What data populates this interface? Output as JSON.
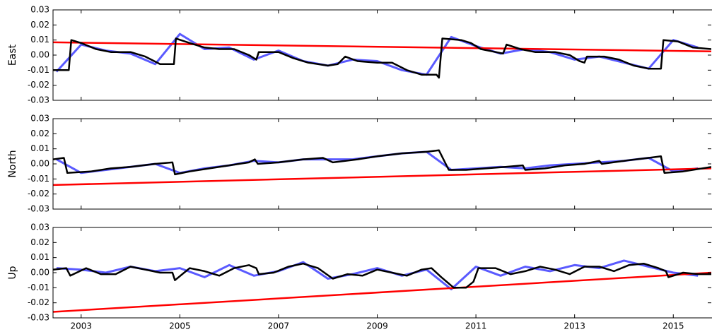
{
  "chart_data": [
    {
      "type": "line",
      "ylabel": "East",
      "xlim": [
        2002.43,
        2015.77
      ],
      "xticks": [
        2003,
        2005,
        2007,
        2009,
        2011,
        2013,
        2015
      ],
      "xtick_labels": false,
      "ylim": [
        -0.03,
        0.03
      ],
      "yticks": [
        -0.03,
        -0.02,
        -0.01,
        {
          "value": 0,
          "label": "0.00"
        },
        0.01,
        0.02,
        0.03
      ],
      "series": [
        {
          "color": "#5a5aff",
          "width": 3,
          "x": [
            2002.5,
            2003,
            2003.5,
            2004,
            2004.5,
            2005,
            2005.5,
            2006,
            2006.5,
            2007,
            2007.5,
            2008,
            2008.5,
            2009,
            2009.5,
            2010,
            2010.5,
            2011,
            2011.5,
            2012,
            2012.5,
            2013,
            2013.5,
            2014,
            2014.5,
            2015,
            2015.5
          ],
          "values": [
            -0.011,
            0.007,
            0.003,
            0.001,
            -0.006,
            0.014,
            0.004,
            0.005,
            -0.003,
            0.003,
            -0.004,
            -0.007,
            -0.003,
            -0.004,
            -0.01,
            -0.013,
            0.012,
            0.006,
            0.001,
            0.004,
            0.002,
            -0.003,
            -0.001,
            -0.005,
            -0.009,
            0.01,
            0.005
          ]
        },
        {
          "color": "#ff0000",
          "width": 2.5,
          "x": [
            2002.43,
            2015.77
          ],
          "values": [
            0.0085,
            0.0025
          ]
        },
        {
          "color": "#000000",
          "width": 2.5,
          "x": [
            2002.43,
            2002.75,
            2002.8,
            2003.0,
            2003.3,
            2003.6,
            2004.0,
            2004.3,
            2004.6,
            2004.88,
            2004.92,
            2005.2,
            2005.5,
            2005.8,
            2006.1,
            2006.4,
            2006.55,
            2006.6,
            2007.0,
            2007.3,
            2007.6,
            2008.0,
            2008.2,
            2008.35,
            2008.6,
            2009.0,
            2009.3,
            2009.6,
            2009.9,
            2010.2,
            2010.25,
            2010.32,
            2010.7,
            2010.9,
            2011.1,
            2011.4,
            2011.55,
            2011.62,
            2011.9,
            2012.2,
            2012.6,
            2012.9,
            2013.1,
            2013.2,
            2013.25,
            2013.6,
            2013.9,
            2014.2,
            2014.5,
            2014.75,
            2014.8,
            2015.1,
            2015.4,
            2015.77
          ],
          "values": [
            -0.01,
            -0.01,
            0.01,
            0.008,
            0.004,
            0.002,
            0.002,
            -0.001,
            -0.006,
            -0.006,
            0.011,
            0.008,
            0.005,
            0.004,
            0.004,
            0.0,
            -0.003,
            0.002,
            0.002,
            -0.002,
            -0.005,
            -0.007,
            -0.006,
            -0.001,
            -0.004,
            -0.005,
            -0.005,
            -0.01,
            -0.013,
            -0.013,
            -0.015,
            0.011,
            0.01,
            0.008,
            0.004,
            0.002,
            0.001,
            0.007,
            0.004,
            0.002,
            0.002,
            0.0,
            -0.004,
            -0.005,
            -0.001,
            -0.001,
            -0.003,
            -0.007,
            -0.009,
            -0.009,
            0.01,
            0.009,
            0.005,
            0.004
          ]
        }
      ]
    },
    {
      "type": "line",
      "ylabel": "North",
      "xlim": [
        2002.43,
        2015.77
      ],
      "xticks": [
        2003,
        2005,
        2007,
        2009,
        2011,
        2013,
        2015
      ],
      "xtick_labels": false,
      "ylim": [
        -0.03,
        0.03
      ],
      "yticks": [
        -0.03,
        -0.02,
        -0.01,
        {
          "value": 0,
          "label": "0.00"
        },
        0.01,
        0.02,
        0.03
      ],
      "series": [
        {
          "color": "#5a5aff",
          "width": 3,
          "x": [
            2002.5,
            2003,
            2003.5,
            2004,
            2004.5,
            2005,
            2005.5,
            2006,
            2006.5,
            2007,
            2007.5,
            2008,
            2008.5,
            2009,
            2009.5,
            2010,
            2010.5,
            2011,
            2011.5,
            2012,
            2012.5,
            2013,
            2013.5,
            2014,
            2014.5,
            2015,
            2015.5
          ],
          "values": [
            0.003,
            -0.006,
            -0.004,
            -0.002,
            0.0,
            -0.006,
            -0.003,
            -0.001,
            0.002,
            0.001,
            0.003,
            0.003,
            0.003,
            0.005,
            0.007,
            0.008,
            -0.004,
            -0.003,
            -0.002,
            -0.003,
            -0.001,
            0.0,
            0.001,
            0.002,
            0.004,
            -0.005,
            -0.003
          ]
        },
        {
          "color": "#ff0000",
          "width": 2.5,
          "x": [
            2002.43,
            2015.77
          ],
          "values": [
            -0.014,
            -0.003
          ]
        },
        {
          "color": "#000000",
          "width": 2.5,
          "x": [
            2002.43,
            2002.65,
            2002.72,
            2003.2,
            2003.6,
            2004.0,
            2004.5,
            2004.85,
            2004.9,
            2005.2,
            2005.6,
            2006.0,
            2006.4,
            2006.52,
            2006.58,
            2007.0,
            2007.5,
            2007.9,
            2008.1,
            2008.6,
            2009.0,
            2009.5,
            2010.0,
            2010.25,
            2010.45,
            2010.8,
            2011.2,
            2011.6,
            2011.95,
            2012.0,
            2012.4,
            2012.8,
            2013.2,
            2013.5,
            2013.55,
            2014.0,
            2014.5,
            2014.75,
            2014.82,
            2015.2,
            2015.77
          ],
          "values": [
            0.003,
            0.004,
            -0.006,
            -0.005,
            -0.003,
            -0.002,
            0.0,
            0.001,
            -0.007,
            -0.005,
            -0.003,
            -0.001,
            0.001,
            0.003,
            0.0,
            0.001,
            0.003,
            0.004,
            0.001,
            0.003,
            0.005,
            0.007,
            0.008,
            0.009,
            -0.004,
            -0.004,
            -0.003,
            -0.002,
            -0.001,
            -0.004,
            -0.003,
            -0.001,
            0.0,
            0.002,
            0.0,
            0.002,
            0.004,
            0.005,
            -0.006,
            -0.005,
            -0.002
          ]
        }
      ]
    },
    {
      "type": "line",
      "ylabel": "Up",
      "xlim": [
        2002.43,
        2015.77
      ],
      "xticks": [
        2003,
        2005,
        2007,
        2009,
        2011,
        2013,
        2015
      ],
      "xtick_labels": true,
      "ylim": [
        -0.03,
        0.03
      ],
      "yticks": [
        -0.03,
        -0.02,
        -0.01,
        {
          "value": 0,
          "label": "0.00"
        },
        0.01,
        0.02,
        0.03
      ],
      "series": [
        {
          "color": "#5a5aff",
          "width": 3,
          "x": [
            2002.5,
            2003,
            2003.5,
            2004,
            2004.5,
            2005,
            2005.5,
            2006,
            2006.5,
            2007,
            2007.5,
            2008,
            2008.5,
            2009,
            2009.5,
            2010,
            2010.5,
            2011,
            2011.5,
            2012,
            2012.5,
            2013,
            2013.5,
            2014,
            2014.5,
            2015,
            2015.5
          ],
          "values": [
            0.003,
            0.002,
            0.0,
            0.004,
            0.001,
            0.003,
            -0.003,
            0.005,
            -0.002,
            0.001,
            0.007,
            -0.004,
            -0.001,
            0.003,
            -0.002,
            0.002,
            -0.011,
            0.004,
            -0.002,
            0.004,
            0.001,
            0.005,
            0.003,
            0.008,
            0.004,
            0.0,
            -0.002
          ]
        },
        {
          "color": "#ff0000",
          "width": 2.5,
          "x": [
            2002.43,
            2015.77
          ],
          "values": [
            -0.026,
            0.0
          ]
        },
        {
          "color": "#000000",
          "width": 2.5,
          "x": [
            2002.43,
            2002.7,
            2002.78,
            2003.1,
            2003.4,
            2003.7,
            2004.0,
            2004.3,
            2004.6,
            2004.85,
            2004.9,
            2005.2,
            2005.5,
            2005.8,
            2006.1,
            2006.4,
            2006.55,
            2006.6,
            2006.9,
            2007.2,
            2007.5,
            2007.8,
            2008.1,
            2008.4,
            2008.7,
            2009.0,
            2009.3,
            2009.6,
            2009.9,
            2010.1,
            2010.3,
            2010.55,
            2010.8,
            2010.95,
            2011.05,
            2011.4,
            2011.7,
            2012.0,
            2012.3,
            2012.6,
            2012.9,
            2013.2,
            2013.5,
            2013.8,
            2014.1,
            2014.4,
            2014.7,
            2014.85,
            2014.9,
            2015.2,
            2015.5,
            2015.77
          ],
          "values": [
            0.002,
            0.003,
            -0.002,
            0.003,
            -0.001,
            -0.001,
            0.004,
            0.002,
            0.0,
            0.0,
            -0.005,
            0.003,
            0.001,
            -0.002,
            0.003,
            0.005,
            0.003,
            -0.001,
            0.0,
            0.004,
            0.006,
            0.003,
            -0.004,
            -0.001,
            -0.002,
            0.002,
            0.0,
            -0.002,
            0.002,
            0.003,
            -0.003,
            -0.01,
            -0.01,
            -0.006,
            0.003,
            0.003,
            -0.001,
            0.001,
            0.004,
            0.002,
            -0.001,
            0.004,
            0.004,
            0.001,
            0.005,
            0.006,
            0.003,
            0.001,
            -0.003,
            0.0,
            -0.001,
            -0.001
          ]
        }
      ]
    }
  ]
}
